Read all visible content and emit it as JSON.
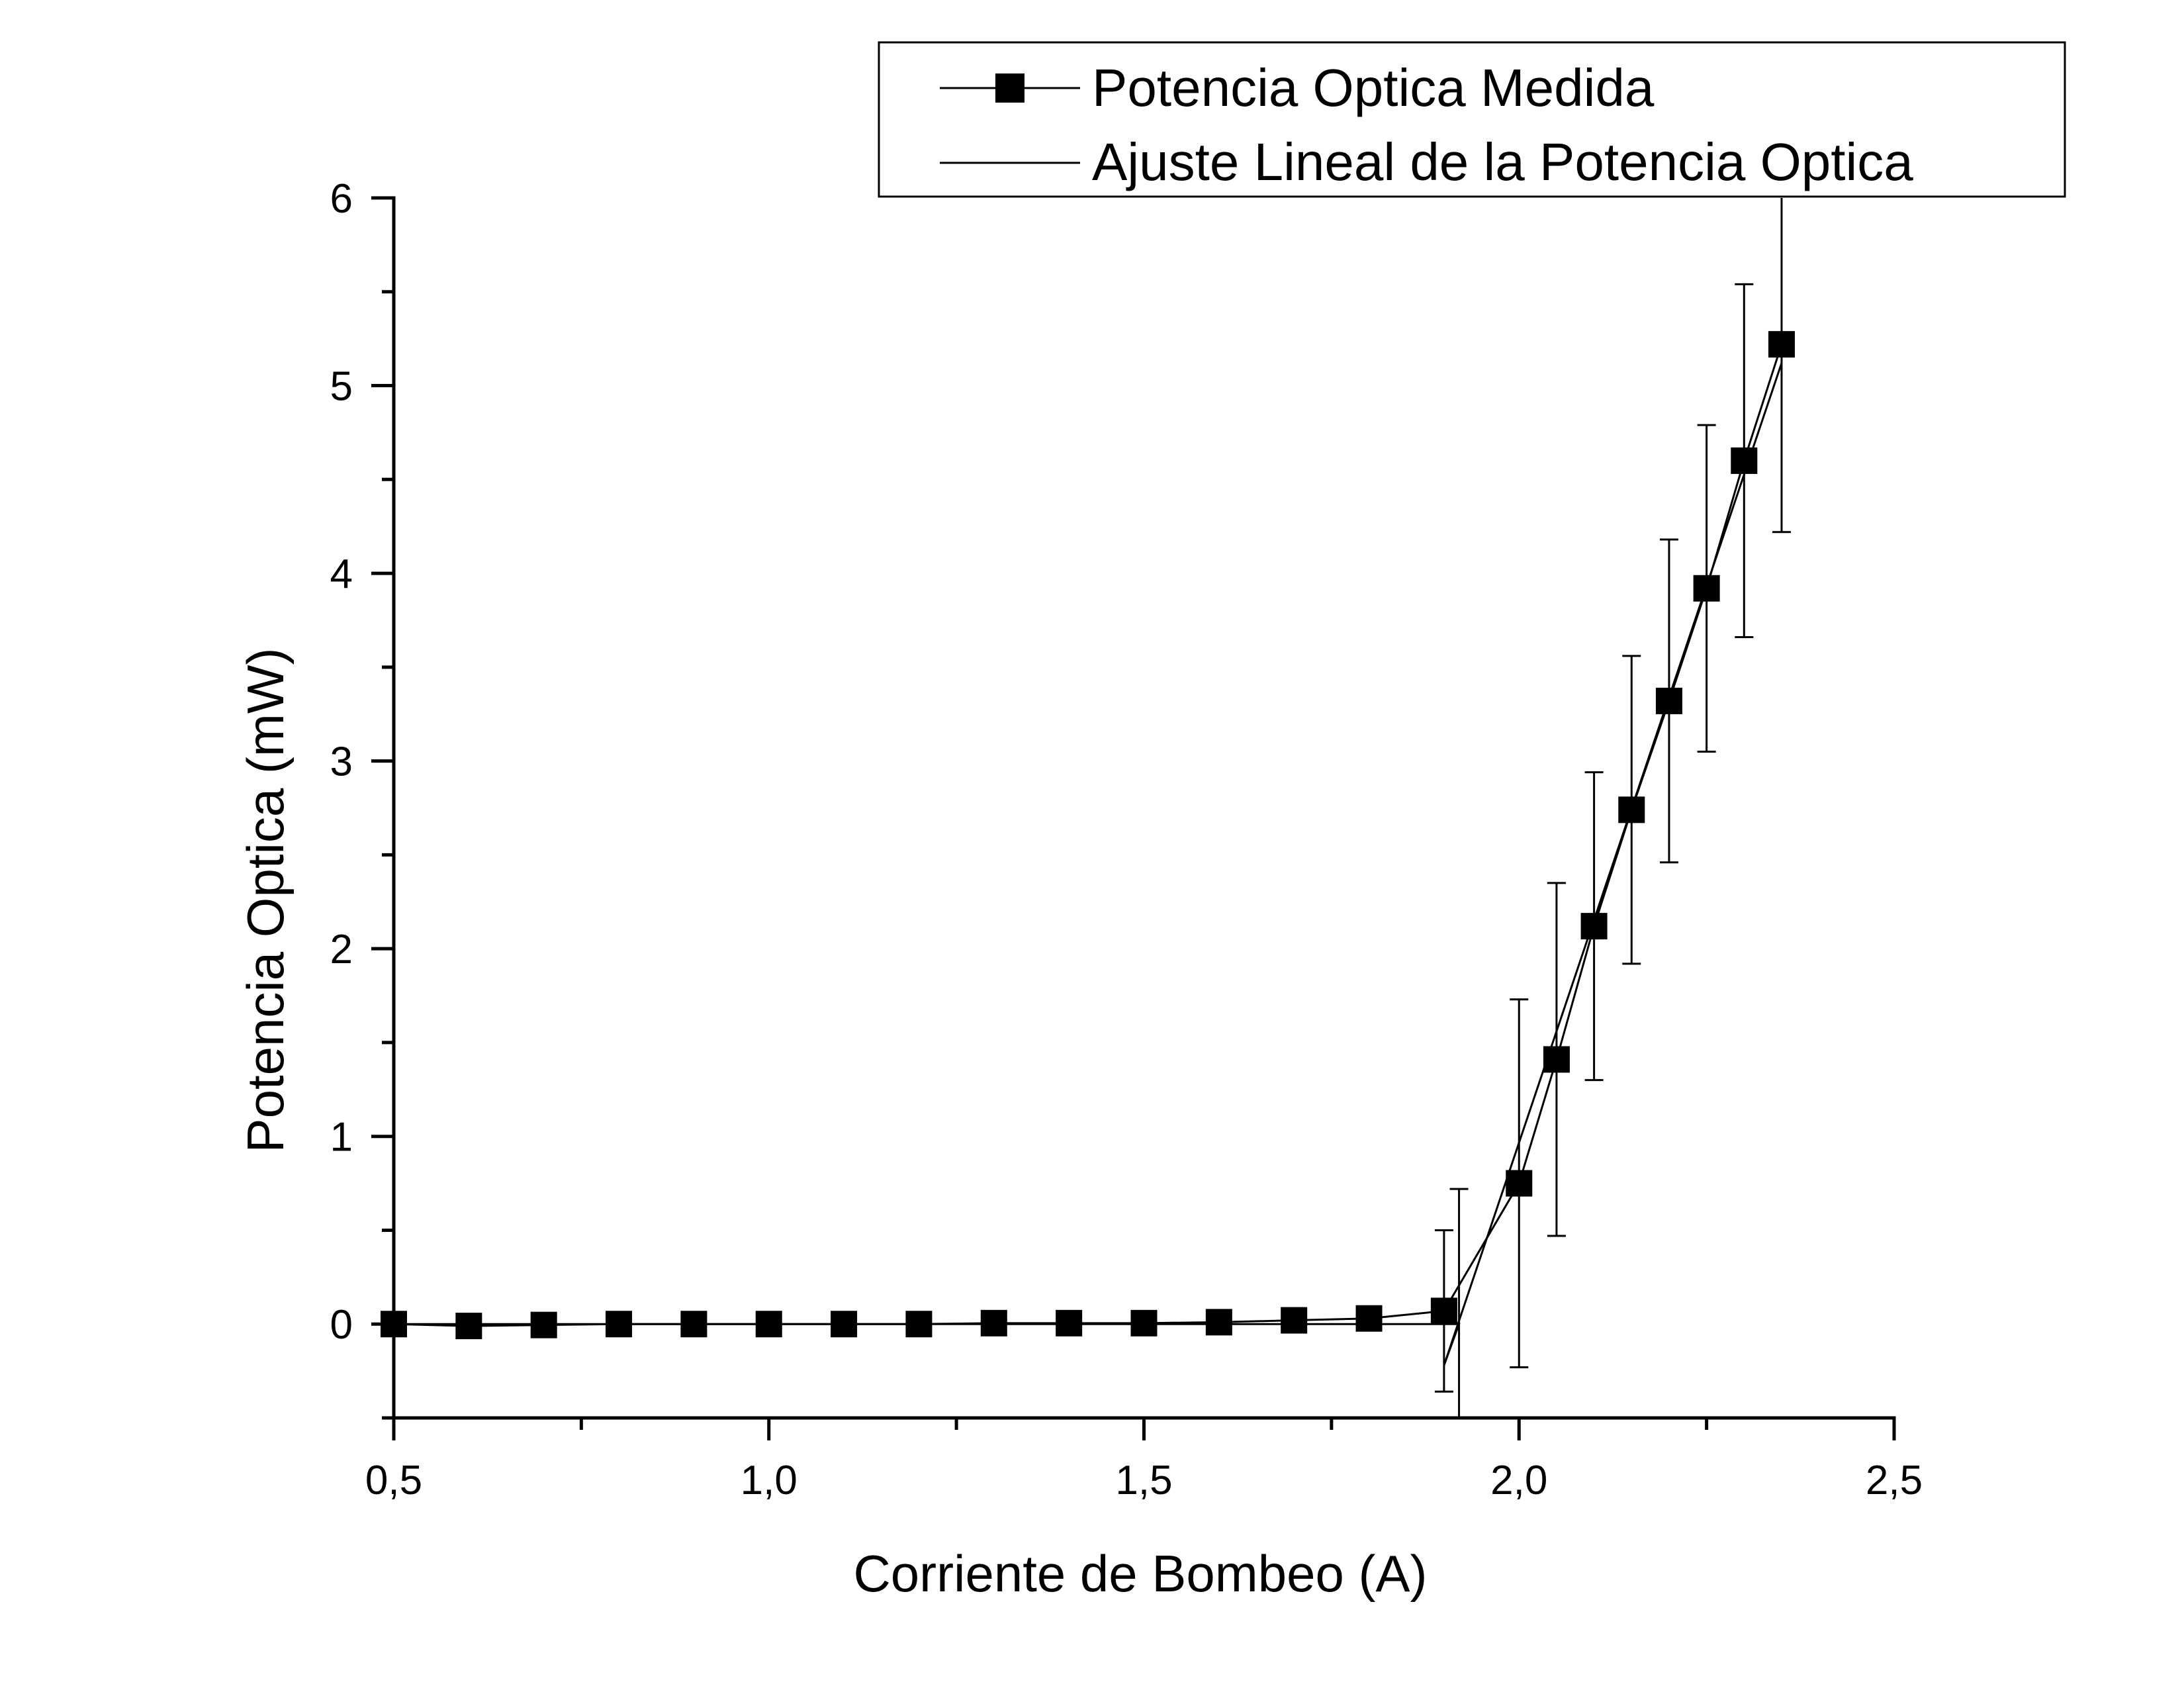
{
  "chart_data": {
    "type": "scatter",
    "xlabel": "Corriente de Bombeo (A)",
    "ylabel": "Potencia Optica (mW)",
    "xlim": [
      0.5,
      2.5
    ],
    "ylim": [
      -0.5,
      6
    ],
    "x_ticks": [
      0.5,
      1.0,
      1.5,
      2.0,
      2.5
    ],
    "x_tick_labels": [
      "0,5",
      "1,0",
      "1,5",
      "2,0",
      "2,5"
    ],
    "x_minor_ticks": [
      0.75,
      1.25,
      1.75,
      2.25
    ],
    "y_ticks": [
      0,
      1,
      2,
      3,
      4,
      5,
      6
    ],
    "y_tick_labels": [
      "0",
      "1",
      "2",
      "3",
      "4",
      "5",
      "6"
    ],
    "y_minor_ticks": [
      -0.5,
      0.5,
      1.5,
      2.5,
      3.5,
      4.5,
      5.5
    ],
    "grid": false,
    "legend": {
      "placement": "top-right, outside plot area"
    },
    "series": [
      {
        "name": "Potencia Optica Medida",
        "style": "line+square-markers",
        "color": "#000000",
        "x": [
          0.5,
          0.6,
          0.7,
          0.8,
          0.9,
          1.0,
          1.1,
          1.2,
          1.3,
          1.4,
          1.5,
          1.6,
          1.7,
          1.8,
          1.9,
          2.0,
          2.05,
          2.1,
          2.15,
          2.2,
          2.25,
          2.3,
          2.35
        ],
        "y": [
          0.0,
          -0.01,
          -0.005,
          0.0,
          0.0,
          0.0,
          0.0,
          0.0,
          0.005,
          0.005,
          0.005,
          0.01,
          0.02,
          0.03,
          0.07,
          0.75,
          1.41,
          2.12,
          2.74,
          3.32,
          3.92,
          4.6,
          5.22
        ],
        "error": [
          null,
          null,
          null,
          null,
          null,
          null,
          null,
          null,
          null,
          null,
          null,
          null,
          null,
          null,
          0.43,
          0.98,
          0.94,
          0.82,
          0.82,
          0.86,
          0.87,
          0.94,
          1.0
        ]
      },
      {
        "name": "Ajuste Lineal de la Potencia Optica",
        "style": "line",
        "color": "#000000",
        "x": [
          0.5,
          1.92,
          1.9,
          2.35
        ],
        "y": [
          0.0,
          0.0,
          -0.22,
          5.12
        ]
      }
    ],
    "extra_error_bars": [
      {
        "x": 1.92,
        "y": 0.0,
        "error": 0.72
      }
    ]
  }
}
